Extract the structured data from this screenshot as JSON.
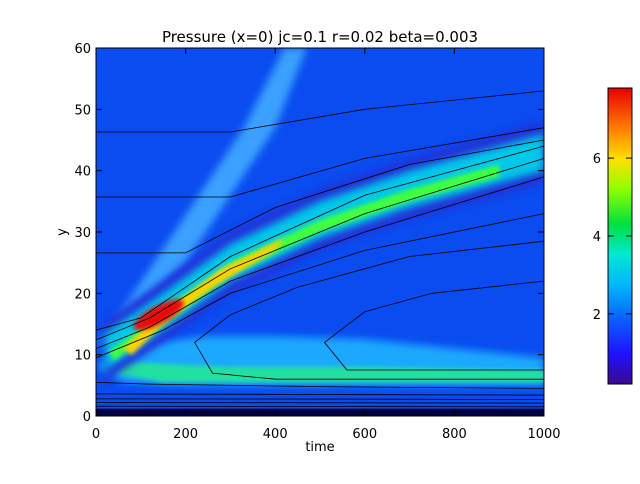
{
  "chart_data": {
    "type": "heatmap",
    "title": "Pressure (x=0) jc=0.1 r=0.02 beta=0.003",
    "xlabel": "time",
    "ylabel": "y",
    "xlim": [
      0,
      1000
    ],
    "ylim": [
      0,
      60
    ],
    "xticks": [
      0,
      200,
      400,
      600,
      800,
      1000
    ],
    "yticks": [
      0,
      10,
      20,
      30,
      40,
      50,
      60
    ],
    "colorbar": {
      "range": [
        0.2,
        7.8
      ],
      "ticks": [
        2,
        4,
        6
      ],
      "colormap": "rainbow (purple-blue-cyan-green-yellow-red)"
    },
    "features": {
      "main_ridge": {
        "description": "high-pressure band rising from bottom-left",
        "points": [
          [
            20,
            10.5
          ],
          [
            150,
            17
          ],
          [
            300,
            25
          ],
          [
            500,
            32
          ],
          [
            700,
            37
          ],
          [
            1000,
            43
          ]
        ],
        "peak_value": 7.8,
        "peak_at": [
          140,
          16.5
        ]
      },
      "lower_band": {
        "y_approx": 6.5,
        "value_approx": 3.5
      },
      "diagonal_streak": {
        "points": [
          [
            0,
            12
          ],
          [
            200,
            25
          ],
          [
            400,
            47
          ],
          [
            470,
            60
          ]
        ],
        "value_approx": 2.0
      },
      "contour_levels": "black contour lines overlaid"
    }
  }
}
